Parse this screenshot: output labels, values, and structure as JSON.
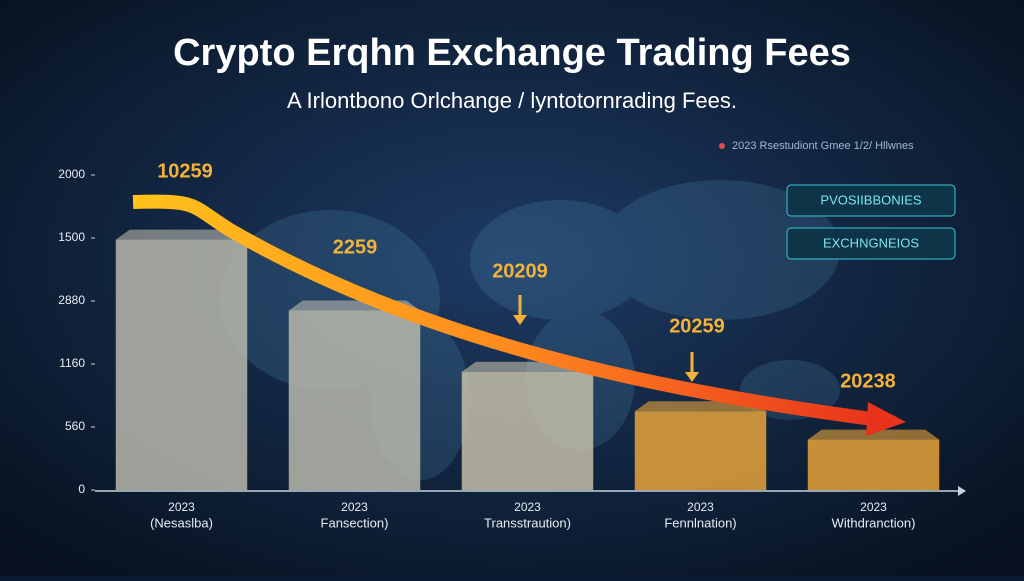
{
  "chart_data": {
    "type": "bar",
    "title": "Crypto Erqhn Exchange Trading Fees",
    "subtitle": "A Irlontbono Orlchange / lyntotornrading Fees.",
    "legend_text": "2023 Rsestudiont Gmee 1/2/ Hllwnes",
    "buttons": [
      "PVOSIIBBONIES",
      "EXCHNGNEIOS"
    ],
    "categories": [
      "2023",
      "2023",
      "2023",
      "2023",
      "2023"
    ],
    "category_sublabels": [
      "(Nesaslba)",
      "Fansection)",
      "Transstraution)",
      "Fennlnation)",
      "Withdranction)"
    ],
    "values": [
      1590,
      1140,
      750,
      500,
      320
    ],
    "colors": [
      "#b9b8ad",
      "#b9b8ad",
      "#c4c0a8",
      "#e8a33a",
      "#e8a33a"
    ],
    "annotations": [
      "10259",
      "2259",
      "20209",
      "20259",
      "20238"
    ],
    "ylim": [
      0,
      2000
    ],
    "yticks": [
      0,
      {
        "value": 400,
        "label": "560"
      },
      {
        "value": 800,
        "label": "1160"
      },
      {
        "value": 1200,
        "label": "2880"
      },
      {
        "value": 1600,
        "label": "1500"
      },
      2000
    ],
    "grid": false
  }
}
